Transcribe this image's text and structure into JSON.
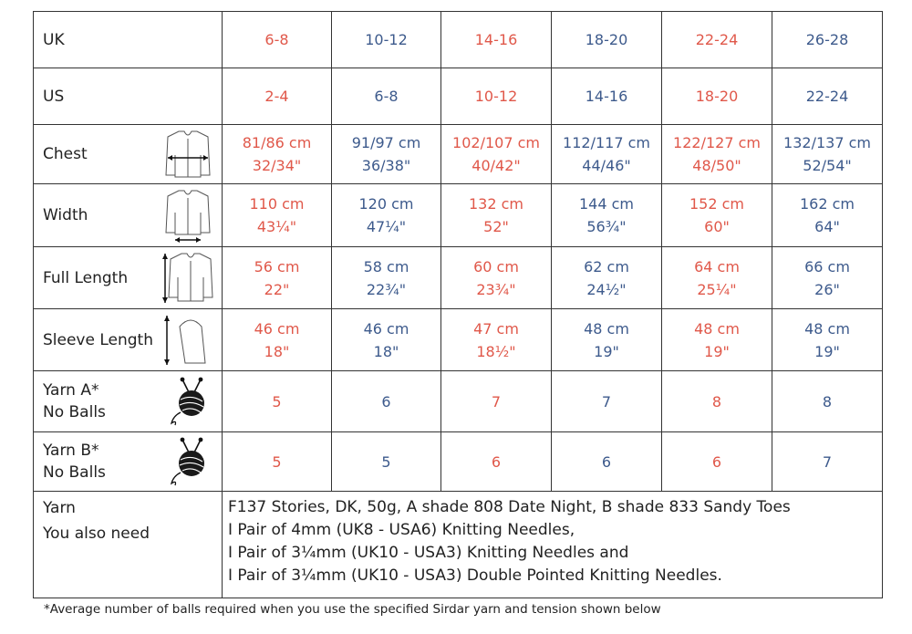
{
  "size_table": {
    "uk": {
      "label": "UK",
      "values": [
        "6-8",
        "10-12",
        "14-16",
        "18-20",
        "22-24",
        "26-28"
      ]
    },
    "us": {
      "label": "US",
      "values": [
        "2-4",
        "6-8",
        "10-12",
        "14-16",
        "18-20",
        "22-24"
      ]
    },
    "chest": {
      "label": "Chest",
      "icon": "cardigan-chest-measure-icon",
      "cm": [
        "81/86 cm",
        "91/97 cm",
        "102/107 cm",
        "112/117 cm",
        "122/127 cm",
        "132/137 cm"
      ],
      "in": [
        "32/34\"",
        "36/38\"",
        "40/42\"",
        "44/46\"",
        "48/50\"",
        "52/54\""
      ]
    },
    "width": {
      "label": "Width",
      "icon": "cardigan-width-measure-icon",
      "cm": [
        "110 cm",
        "120 cm",
        "132 cm",
        "144 cm",
        "152 cm",
        "162 cm"
      ],
      "in": [
        "43¼\"",
        "47¼\"",
        "52\"",
        "56¾\"",
        "60\"",
        "64\""
      ]
    },
    "full_length": {
      "label": "Full Length",
      "icon": "cardigan-length-measure-icon",
      "cm": [
        "56 cm",
        "58 cm",
        "60 cm",
        "62 cm",
        "64 cm",
        "66 cm"
      ],
      "in": [
        "22\"",
        "22¾\"",
        "23¾\"",
        "24½\"",
        "25¼\"",
        "26\""
      ]
    },
    "sleeve_length": {
      "label": "Sleeve Length",
      "icon": "sleeve-length-measure-icon",
      "cm": [
        "46 cm",
        "46 cm",
        "47 cm",
        "48 cm",
        "48 cm",
        "48 cm"
      ],
      "in": [
        "18\"",
        "18\"",
        "18½\"",
        "19\"",
        "19\"",
        "19\""
      ]
    },
    "yarn_a": {
      "label_line1": "Yarn A*",
      "label_line2": "No Balls",
      "icon": "yarn-ball-needles-icon",
      "values": [
        "5",
        "6",
        "7",
        "7",
        "8",
        "8"
      ]
    },
    "yarn_b": {
      "label_line1": "Yarn B*",
      "label_line2": "No Balls",
      "icon": "yarn-ball-needles-icon",
      "values": [
        "5",
        "5",
        "6",
        "6",
        "6",
        "7"
      ]
    },
    "info": {
      "label_yarn": "Yarn",
      "label_also_need": "You also need",
      "lines": [
        "F137 Stories, DK, 50g, A shade 808 Date Night, B shade 833 Sandy Toes",
        "I Pair of 4mm (UK8 - USA6) Knitting Needles,",
        "I Pair of 3¼mm (UK10 - USA3) Knitting Needles and",
        "I Pair of 3¼mm (UK10 - USA3) Double Pointed Knitting Needles."
      ]
    }
  },
  "footnote": "*Average number of balls required when you use the specified Sirdar yarn and tension shown below",
  "colors": {
    "red": "#e0584a",
    "blue": "#3d5a8c",
    "border": "#333333"
  }
}
